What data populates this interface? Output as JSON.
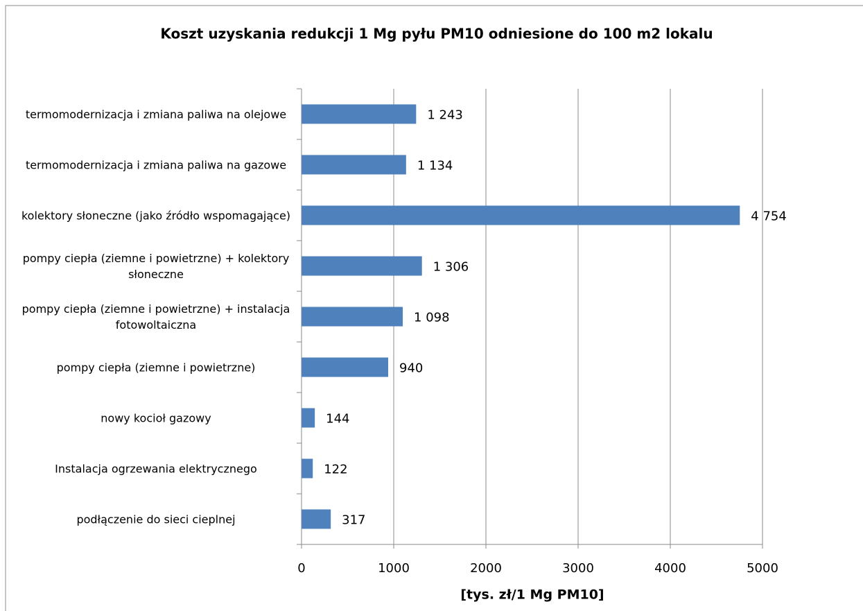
{
  "chart_data": {
    "type": "bar",
    "orientation": "horizontal",
    "title": "Koszt uzyskania redukcji 1 Mg pyłu PM10 odniesione do 100 m2 lokalu",
    "x_label": "[tys. zł/1 Mg PM10]",
    "categories": [
      "termomodernizacja i zmiana paliwa na olejowe",
      "termomodernizacja i zmiana paliwa na gazowe",
      "kolektory słoneczne (jako źródło wspomagające)",
      "pompy ciepła (ziemne i powietrzne) + kolektory słoneczne",
      "pompy ciepła (ziemne i powietrzne) + instalacja fotowoltaiczna",
      "pompy ciepła (ziemne i powietrzne)",
      "nowy kocioł gazowy",
      "Instalacja ogrzewania elektrycznego",
      "podłączenie do sieci cieplnej"
    ],
    "values": [
      1243,
      1134,
      4754,
      1306,
      1098,
      940,
      144,
      122,
      317
    ],
    "value_labels": [
      "1 243",
      "1 134",
      "4 754",
      "1 306",
      "1 098",
      "940",
      "144",
      "122",
      "317"
    ],
    "color": "#4f81bd",
    "xlim": [
      0,
      5000
    ],
    "xticks": [
      0,
      1000,
      2000,
      3000,
      4000,
      5000
    ],
    "grid": true
  }
}
